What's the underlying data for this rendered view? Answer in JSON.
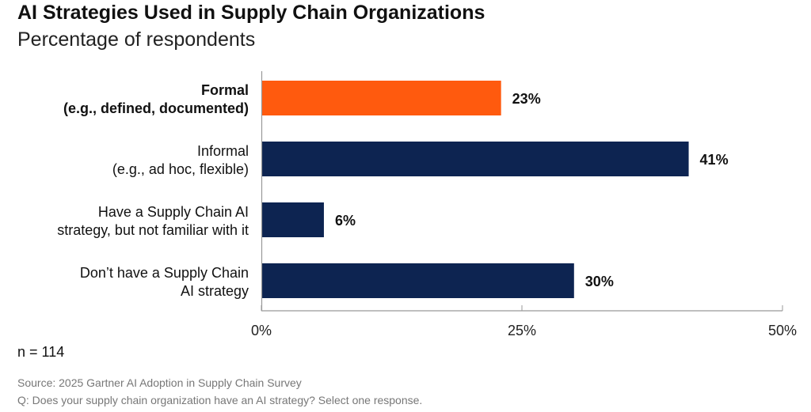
{
  "header": {
    "title": "AI Strategies Used in Supply Chain Organizations",
    "subtitle": "Percentage of respondents"
  },
  "footer": {
    "n": "n = 114",
    "source": "Source: 2025 Gartner AI Adoption in Supply Chain Survey",
    "question": "Q: Does your supply chain organization have an AI strategy? Select one response."
  },
  "colors": {
    "highlight": "#FF5A0E",
    "bar": "#0D2451",
    "axis": "#999999",
    "text": "#111111"
  },
  "chart_data": {
    "type": "bar",
    "orientation": "horizontal",
    "title": "AI Strategies Used in Supply Chain Organizations",
    "subtitle": "Percentage of respondents",
    "categories": [
      [
        "Formal",
        "(e.g., defined, documented)"
      ],
      [
        "Informal",
        "(e.g., ad hoc, flexible)"
      ],
      [
        "Have a Supply Chain AI",
        "strategy, but not familiar with it"
      ],
      [
        "Don’t have a Supply Chain",
        "AI strategy"
      ]
    ],
    "values": [
      23,
      41,
      6,
      30
    ],
    "value_labels": [
      "23%",
      "41%",
      "6%",
      "30%"
    ],
    "highlighted": [
      true,
      false,
      false,
      false
    ],
    "xlim": [
      0,
      50
    ],
    "x_ticks": [
      0,
      25,
      50
    ],
    "x_tick_labels": [
      "0%",
      "25%",
      "50%"
    ],
    "grid": false,
    "legend": "none"
  }
}
